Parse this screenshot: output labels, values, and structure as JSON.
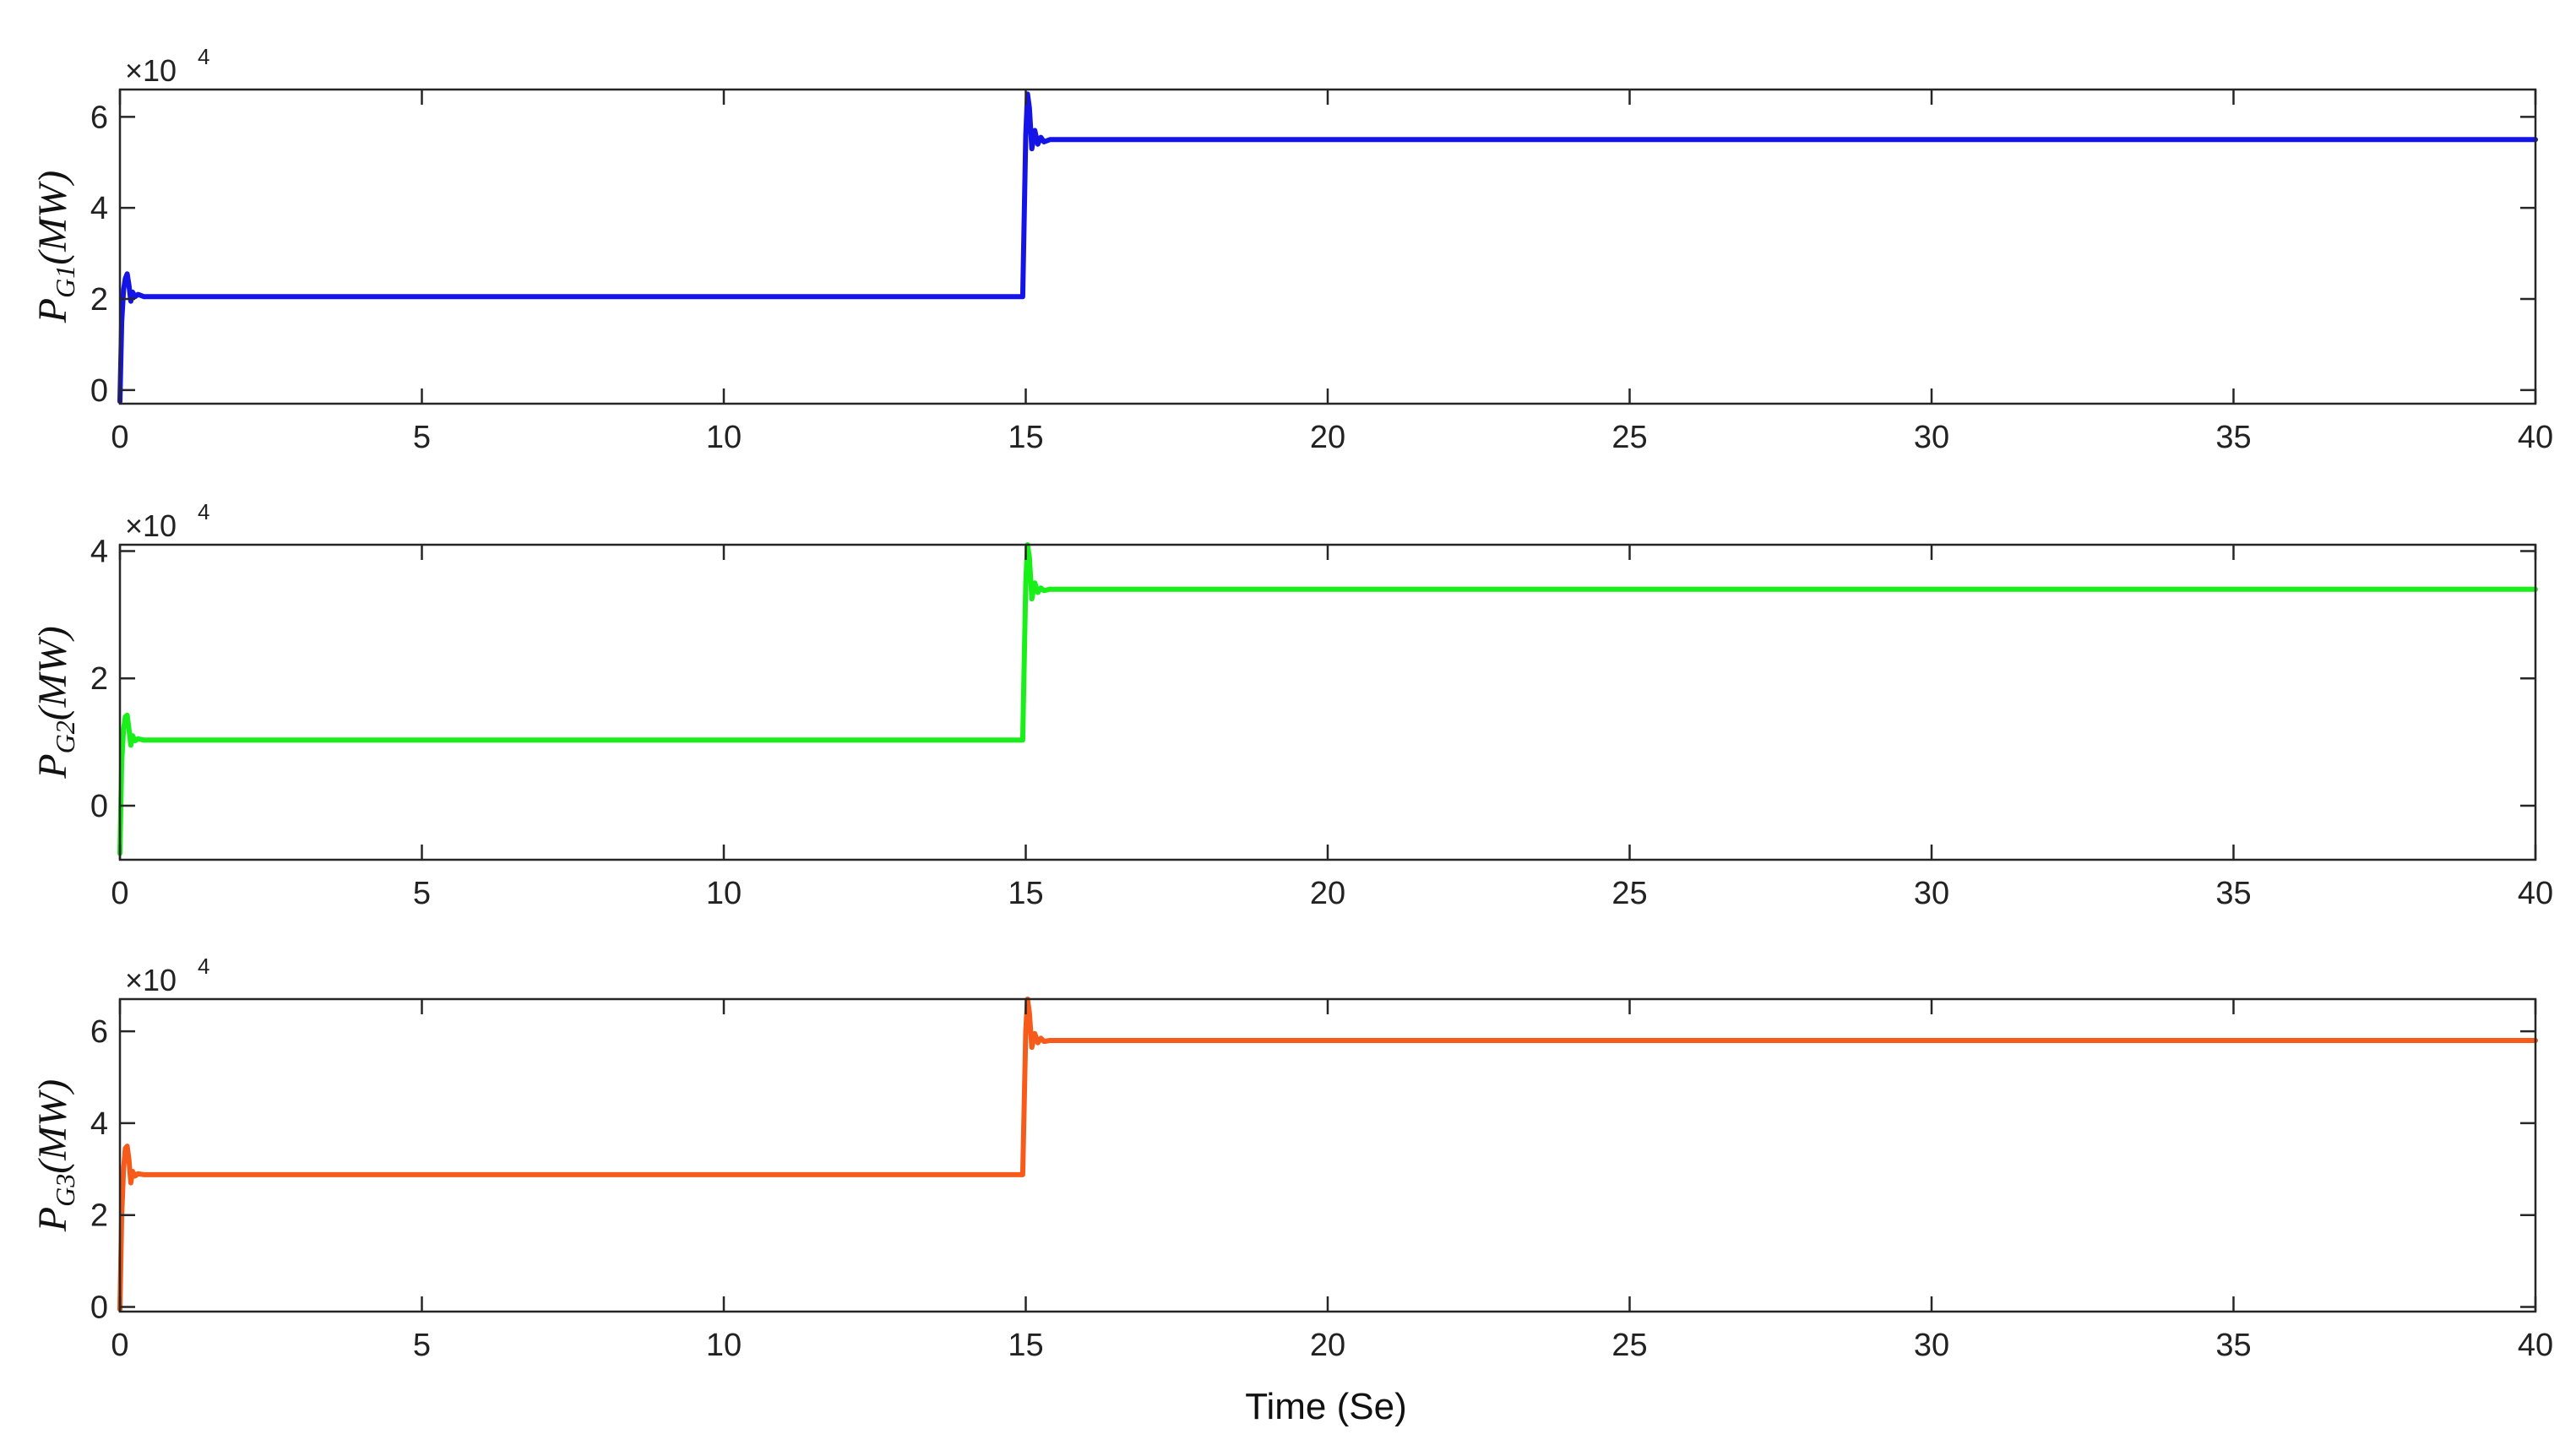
{
  "chart_data": [
    {
      "type": "line",
      "ylabel": "P_{G1}(MW)",
      "ylabel_main": "P",
      "ylabel_sub": "G1",
      "ylabel_tail": "(MW)",
      "exponent_label": "×10",
      "exponent_power": "4",
      "xlim": [
        0,
        40
      ],
      "ylim": [
        -0.3,
        6.6
      ],
      "xticks": [
        0,
        5,
        10,
        15,
        20,
        25,
        30,
        35,
        40
      ],
      "yticks": [
        0,
        2,
        4,
        6
      ],
      "grid": false,
      "series": [
        {
          "color": "#1414e6",
          "x": [
            0,
            0.03,
            0.06,
            0.09,
            0.12,
            0.15,
            0.18,
            0.21,
            0.25,
            0.3,
            0.4,
            0.5,
            14.95,
            15.0,
            15.03,
            15.06,
            15.1,
            15.15,
            15.2,
            15.25,
            15.3,
            15.4,
            15.5,
            40
          ],
          "y": [
            -0.25,
            1.5,
            2.2,
            2.45,
            2.55,
            2.3,
            1.95,
            2.15,
            2.05,
            2.1,
            2.05,
            2.05,
            2.05,
            5.6,
            6.5,
            6.2,
            5.3,
            5.7,
            5.4,
            5.55,
            5.45,
            5.5,
            5.5,
            5.5
          ]
        }
      ]
    },
    {
      "type": "line",
      "ylabel": "P_{G2}(MW)",
      "ylabel_main": "P",
      "ylabel_sub": "G2",
      "ylabel_tail": "(MW)",
      "exponent_label": "×10",
      "exponent_power": "4",
      "xlim": [
        0,
        40
      ],
      "ylim": [
        -0.85,
        4.1
      ],
      "xticks": [
        0,
        5,
        10,
        15,
        20,
        25,
        30,
        35,
        40
      ],
      "yticks": [
        0,
        2,
        4
      ],
      "grid": false,
      "series": [
        {
          "color": "#19f019",
          "x": [
            0,
            0.03,
            0.06,
            0.09,
            0.12,
            0.15,
            0.18,
            0.21,
            0.25,
            0.3,
            0.4,
            0.5,
            14.95,
            15.0,
            15.03,
            15.06,
            15.1,
            15.15,
            15.2,
            15.25,
            15.3,
            15.4,
            15.5,
            40
          ],
          "y": [
            -0.75,
            0.7,
            1.2,
            1.4,
            1.42,
            1.2,
            0.95,
            1.1,
            1.02,
            1.05,
            1.03,
            1.03,
            1.03,
            3.5,
            4.1,
            3.9,
            3.25,
            3.5,
            3.35,
            3.42,
            3.38,
            3.4,
            3.4,
            3.4
          ]
        }
      ]
    },
    {
      "type": "line",
      "ylabel": "P_{G3}(MW)",
      "ylabel_main": "P",
      "ylabel_sub": "G3",
      "ylabel_tail": "(MW)",
      "exponent_label": "×10",
      "exponent_power": "4",
      "xlim": [
        0,
        40
      ],
      "ylim": [
        -0.1,
        6.7
      ],
      "xticks": [
        0,
        5,
        10,
        15,
        20,
        25,
        30,
        35,
        40
      ],
      "yticks": [
        0,
        2,
        4,
        6
      ],
      "grid": false,
      "series": [
        {
          "color": "#f75b1b",
          "x": [
            0,
            0.03,
            0.06,
            0.09,
            0.12,
            0.15,
            0.18,
            0.21,
            0.25,
            0.3,
            0.4,
            0.5,
            14.95,
            15.0,
            15.03,
            15.06,
            15.1,
            15.15,
            15.2,
            15.25,
            15.3,
            15.4,
            15.5,
            40
          ],
          "y": [
            -0.05,
            2.0,
            3.0,
            3.45,
            3.5,
            3.2,
            2.7,
            2.95,
            2.85,
            2.9,
            2.88,
            2.88,
            2.88,
            6.0,
            6.7,
            6.4,
            5.65,
            5.95,
            5.75,
            5.85,
            5.78,
            5.8,
            5.8,
            5.8
          ]
        }
      ]
    }
  ],
  "xlabel": "Time (Se)"
}
